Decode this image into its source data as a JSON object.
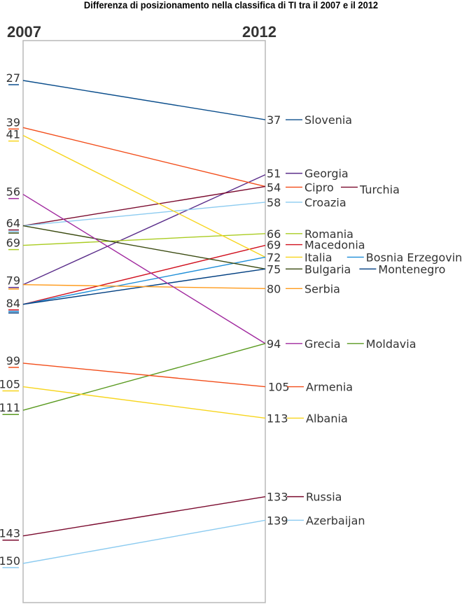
{
  "chart_data": {
    "type": "slope",
    "title": "Differenza di posizionamento nella classifica di TI tra il 2007 e il 2012",
    "left_label": "2007",
    "right_label": "2012",
    "y_direction": "rank (lower is better, top)",
    "y_range": [
      27,
      150
    ],
    "left_ticks": [
      27,
      39,
      41,
      56,
      64,
      69,
      79,
      84,
      99,
      105,
      111,
      143,
      150
    ],
    "right_ticks": [
      37,
      51,
      54,
      58,
      66,
      69,
      72,
      75,
      80,
      94,
      105,
      113,
      133,
      139
    ],
    "series": [
      {
        "name": "Slovenia",
        "y2007": 27,
        "y2012": 37,
        "color": "#0b4e8c"
      },
      {
        "name": "Georgia",
        "y2007": 79,
        "y2012": 51,
        "color": "#5a2d8a"
      },
      {
        "name": "Cipro",
        "y2007": 39,
        "y2012": 54,
        "color": "#f24d1a"
      },
      {
        "name": "Turchia",
        "y2007": 64,
        "y2012": 54,
        "color": "#7a0a2e"
      },
      {
        "name": "Croazia",
        "y2007": 64,
        "y2012": 58,
        "color": "#8ccbf0"
      },
      {
        "name": "Romania",
        "y2007": 69,
        "y2012": 66,
        "color": "#aacc22"
      },
      {
        "name": "Macedonia",
        "y2007": 84,
        "y2012": 69,
        "color": "#d0101e"
      },
      {
        "name": "Italia",
        "y2007": 41,
        "y2012": 72,
        "color": "#f7d51d"
      },
      {
        "name": "Bosnia Erzegovina",
        "y2007": 84,
        "y2012": 72,
        "color": "#1e8ed8"
      },
      {
        "name": "Bulgaria",
        "y2007": 64,
        "y2012": 75,
        "color": "#3a4a10"
      },
      {
        "name": "Montenegro",
        "y2007": 84,
        "y2012": 75,
        "color": "#003e80"
      },
      {
        "name": "Serbia",
        "y2007": 79,
        "y2012": 80,
        "color": "#ff9a1a"
      },
      {
        "name": "Grecia",
        "y2007": 56,
        "y2012": 94,
        "color": "#a0289e"
      },
      {
        "name": "Moldavia",
        "y2007": 111,
        "y2012": 94,
        "color": "#5a9a20"
      },
      {
        "name": "Armenia",
        "y2007": 99,
        "y2012": 105,
        "color": "#f24d1a"
      },
      {
        "name": "Albania",
        "y2007": 105,
        "y2012": 113,
        "color": "#f7d51d"
      },
      {
        "name": "Russia",
        "y2007": 143,
        "y2012": 133,
        "color": "#7a0a2e"
      },
      {
        "name": "Azerbaijan",
        "y2007": 150,
        "y2012": 139,
        "color": "#8ccbf0"
      }
    ],
    "right_groups": [
      {
        "rank": 37,
        "names": [
          "Slovenia"
        ]
      },
      {
        "rank": 51,
        "names": [
          "Georgia"
        ]
      },
      {
        "rank": 54,
        "names": [
          "Cipro",
          "Turchia"
        ]
      },
      {
        "rank": 58,
        "names": [
          "Croazia"
        ]
      },
      {
        "rank": 66,
        "names": [
          "Romania"
        ]
      },
      {
        "rank": 69,
        "names": [
          "Macedonia"
        ]
      },
      {
        "rank": 72,
        "names": [
          "Italia",
          "Bosnia Erzegovina"
        ]
      },
      {
        "rank": 75,
        "names": [
          "Bulgaria",
          "Montenegro"
        ]
      },
      {
        "rank": 80,
        "names": [
          "Serbia"
        ]
      },
      {
        "rank": 94,
        "names": [
          "Grecia",
          "Moldavia"
        ]
      },
      {
        "rank": 105,
        "names": [
          "Armenia"
        ]
      },
      {
        "rank": 113,
        "names": [
          "Albania"
        ]
      },
      {
        "rank": 133,
        "names": [
          "Russia"
        ]
      },
      {
        "rank": 139,
        "names": [
          "Azerbaijan"
        ]
      }
    ],
    "grid": false
  }
}
